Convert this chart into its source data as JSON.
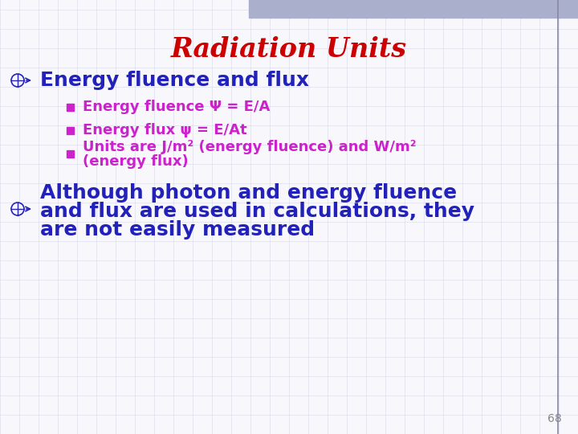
{
  "title": "Radiation Units",
  "title_color": "#cc0000",
  "title_fontsize": 24,
  "bg_color": "#f8f8fc",
  "grid_color": "#d8d8e8",
  "bullet1_text": "Energy fluence and flux",
  "bullet1_color": "#2222bb",
  "sub1_text": "Energy fluence Ψ = E/A",
  "sub2_text": "Energy flux ψ = E/At",
  "sub3_line1": "Units are J/m² (energy fluence) and W/m²",
  "sub3_line2": "(energy flux)",
  "sub_color": "#cc22cc",
  "bullet2_line1": "Although photon and energy fluence",
  "bullet2_line2": "and flux are used in calculations, they",
  "bullet2_line3": "are not easily measured",
  "bullet2_color": "#2222bb",
  "page_num": "68",
  "page_num_color": "#888888",
  "top_bar_color": "#aab0cc",
  "right_bar_color": "#8888aa"
}
